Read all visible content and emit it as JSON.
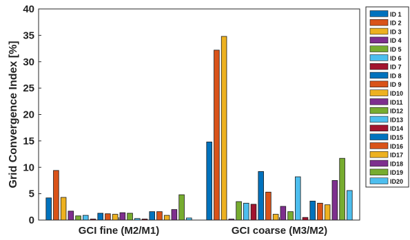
{
  "chart_data": {
    "type": "bar",
    "title": "",
    "xlabel": "",
    "ylabel": "Grid Convergence Index [%]",
    "ylim": [
      0,
      40
    ],
    "yticks": [
      0,
      5,
      10,
      15,
      20,
      25,
      30,
      35,
      40
    ],
    "grid": false,
    "legend_position": "right",
    "categories": [
      "GCI fine (M2/M1)",
      "GCI coarse (M3/M2)"
    ],
    "series": [
      {
        "name": "ID 1",
        "color": "#0072BD",
        "values": [
          4.2,
          14.8
        ]
      },
      {
        "name": "ID 2",
        "color": "#D95319",
        "values": [
          9.4,
          32.2
        ]
      },
      {
        "name": "ID 3",
        "color": "#EDB120",
        "values": [
          4.3,
          34.8
        ]
      },
      {
        "name": "ID 4",
        "color": "#7E2F8E",
        "values": [
          1.7,
          0.2
        ]
      },
      {
        "name": "ID 5",
        "color": "#77AC30",
        "values": [
          0.8,
          3.5
        ]
      },
      {
        "name": "ID 6",
        "color": "#4DBEEE",
        "values": [
          0.9,
          3.2
        ]
      },
      {
        "name": "ID 7",
        "color": "#A2142F",
        "values": [
          0.2,
          3.0
        ]
      },
      {
        "name": "ID 8",
        "color": "#0072BD",
        "values": [
          1.3,
          9.2
        ]
      },
      {
        "name": "ID 9",
        "color": "#D95319",
        "values": [
          1.2,
          5.3
        ]
      },
      {
        "name": "ID10",
        "color": "#EDB120",
        "values": [
          1.1,
          1.1
        ]
      },
      {
        "name": "ID11",
        "color": "#7E2F8E",
        "values": [
          1.4,
          2.6
        ]
      },
      {
        "name": "ID12",
        "color": "#77AC30",
        "values": [
          1.3,
          1.6
        ]
      },
      {
        "name": "ID13",
        "color": "#4DBEEE",
        "values": [
          0.3,
          8.2
        ]
      },
      {
        "name": "ID14",
        "color": "#A2142F",
        "values": [
          0.2,
          0.5
        ]
      },
      {
        "name": "ID15",
        "color": "#0072BD",
        "values": [
          1.6,
          3.6
        ]
      },
      {
        "name": "ID16",
        "color": "#D95319",
        "values": [
          1.6,
          3.2
        ]
      },
      {
        "name": "ID17",
        "color": "#EDB120",
        "values": [
          0.9,
          2.9
        ]
      },
      {
        "name": "ID18",
        "color": "#7E2F8E",
        "values": [
          2.0,
          7.5
        ]
      },
      {
        "name": "ID19",
        "color": "#77AC30",
        "values": [
          4.8,
          11.7
        ]
      },
      {
        "name": "ID20",
        "color": "#4DBEEE",
        "values": [
          0.4,
          5.6
        ]
      }
    ]
  }
}
